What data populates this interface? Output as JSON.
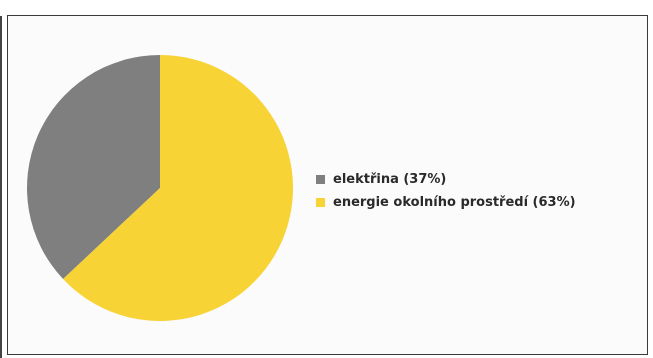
{
  "chart_data": {
    "type": "pie",
    "title": "",
    "slices": [
      {
        "label": "elektřina (37%)",
        "value": 37,
        "color": "#7f7f7f"
      },
      {
        "label": "energie okolního prostředí (63%)",
        "value": 63,
        "color": "#f7d335"
      }
    ],
    "legend_position": "right"
  }
}
